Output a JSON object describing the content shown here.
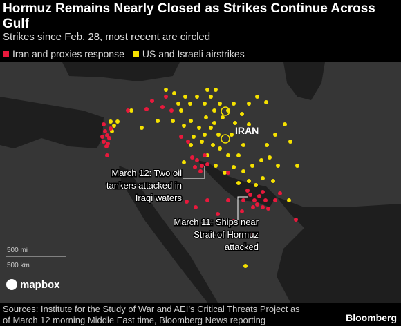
{
  "title": "Hormuz Remains Nearly Closed as Strikes Continue Across Gulf",
  "subtitle": "Strikes since Feb. 28, most recent are circled",
  "legend": [
    {
      "label": "Iran and proxies response",
      "color": "#e8193c"
    },
    {
      "label": "US and Israeli airstrikes",
      "color": "#f5e100"
    }
  ],
  "map": {
    "country_label": "IRAN",
    "annotations": [
      {
        "lines": [
          "March 12: Two oil",
          "tankers attacked in",
          "Iraqi waters"
        ]
      },
      {
        "lines": [
          "March 11: Ships near",
          "Strait of Hormuz",
          "attacked"
        ]
      }
    ],
    "scale": [
      "500 mi",
      "500 km"
    ],
    "attribution": "mapbox"
  },
  "footer": {
    "sources": [
      "Sources: Institute for the Study of War and AEI’s Critical Threats Project as",
      "of March 12 morning Middle East time, Bloomberg News reporting"
    ],
    "brand": "Bloomberg"
  }
}
